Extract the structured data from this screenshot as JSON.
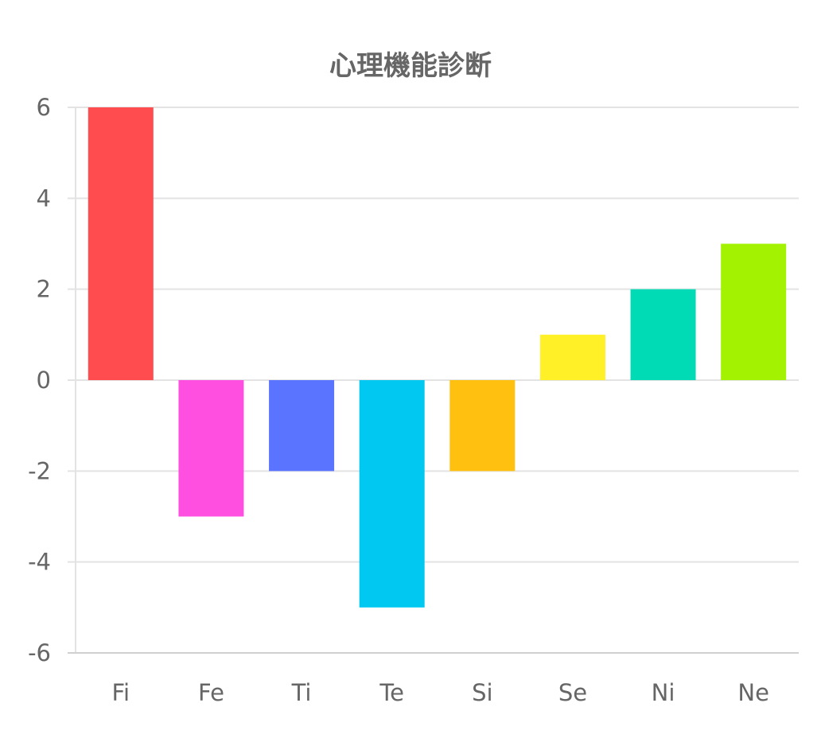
{
  "chart_data": {
    "type": "bar",
    "title": "心理機能診断",
    "xlabel": "",
    "ylabel": "",
    "categories": [
      "Fi",
      "Fe",
      "Ti",
      "Te",
      "Si",
      "Se",
      "Ni",
      "Ne"
    ],
    "values": [
      6,
      -3,
      -2,
      -5,
      -2,
      1,
      2,
      3
    ],
    "colors": [
      "#ff4d4f",
      "#ff4fe1",
      "#5b74ff",
      "#00c8f0",
      "#ffc010",
      "#fff027",
      "#00dbb5",
      "#a2f201"
    ],
    "ylim": [
      -6,
      6
    ],
    "yticks": [
      6,
      4,
      2,
      0,
      -2,
      -4,
      -6
    ],
    "ytick_labels": [
      "6",
      "4",
      "2",
      "0",
      "-2",
      "-4",
      "-6"
    ],
    "grid": true,
    "legend": "none",
    "gridline_color": "#e3e3e3",
    "axis_color": "#d0d0d0",
    "text_color": "#666666"
  }
}
